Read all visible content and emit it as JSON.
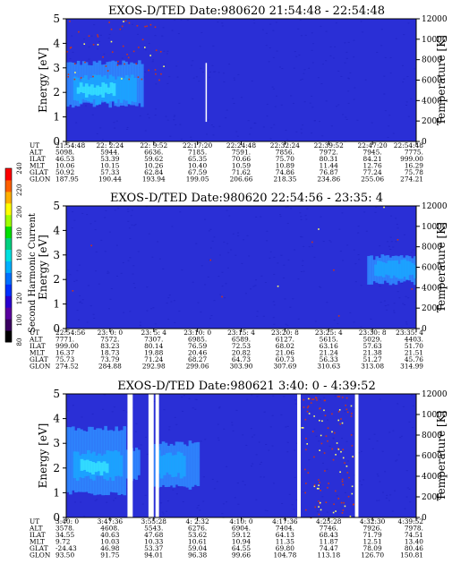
{
  "colorbar": {
    "label": "Second Harmonic Current",
    "ticks": [
      "80",
      "100",
      "120",
      "140",
      "160",
      "180",
      "200",
      "220",
      "240"
    ]
  },
  "colors": {
    "background": "#2a2fd6",
    "speckle_blue": "#1f23c4",
    "burst_light": "#2f8bff",
    "burst_core": "#1aa6ff",
    "burst_cyan": "#35e0ff",
    "speck_red": "#c8351f",
    "speck_yellow": "#ffff66",
    "white_line": "#ffffff"
  },
  "chart_data": [
    {
      "type": "heatmap",
      "title": "EXOS-D/TED   Date:980620  21:54:48 - 22:54:48",
      "ylabel": "Energy [eV]",
      "ylabel_right": "Temperature [K]",
      "ylim": [
        0,
        5
      ],
      "yticks": [
        "0",
        "1",
        "2",
        "3",
        "4",
        "5"
      ],
      "ylim_right": [
        0,
        12000
      ],
      "yticks_right": [
        "0",
        "2000",
        "4000",
        "6000",
        "8000",
        "10000",
        "12000"
      ],
      "row_labels": [
        "UT",
        "ALT",
        "ILAT",
        "MLT",
        "GLAT",
        "GLON"
      ],
      "columns": [
        [
          "21:54:48",
          "5098.",
          "46.53",
          "10.06",
          "50.92",
          "187.95"
        ],
        [
          "22: 2:24",
          "5944.",
          "53.39",
          "10.15",
          "57.33",
          "190.44"
        ],
        [
          "22: 9:52",
          "6636.",
          "59.62",
          "10.26",
          "62.84",
          "193.94"
        ],
        [
          "22:17:20",
          "7185.",
          "65.35",
          "10.40",
          "67.59",
          "199.05"
        ],
        [
          "22:24:48",
          "7591.",
          "70.66",
          "10.59",
          "71.62",
          "206.66"
        ],
        [
          "22:32:24",
          "7856.",
          "75.70",
          "10.89",
          "74.86",
          "218.35"
        ],
        [
          "22:39:52",
          "7972.",
          "80.31",
          "11.44",
          "76.87",
          "234.86"
        ],
        [
          "22:47:20",
          "7945.",
          "84.21",
          "12.76",
          "77.24",
          "255.06"
        ],
        [
          "22:54:48",
          "7775.",
          "999.00",
          "16.29",
          "75.78",
          "274.21"
        ]
      ],
      "regions": [
        {
          "x0": 0.0,
          "x1": 0.22,
          "y0": 1.5,
          "y1": 3.2,
          "level": "burst_light"
        },
        {
          "x0": 0.02,
          "x1": 0.2,
          "y0": 1.6,
          "y1": 2.6,
          "level": "burst_core"
        },
        {
          "x0": 0.03,
          "x1": 0.14,
          "y0": 1.9,
          "y1": 2.3,
          "level": "burst_cyan"
        }
      ],
      "vlines": [
        0.4
      ],
      "speckle_region": {
        "x0": 0.0,
        "x1": 0.3,
        "y0": 2.5,
        "y1": 5.0,
        "count": 60
      }
    },
    {
      "type": "heatmap",
      "title": "EXOS-D/TED   Date:980620  22:54:56 - 23:35: 4",
      "ylabel": "Energy [eV]",
      "ylabel_right": "Temperature [K]",
      "ylim": [
        0,
        5
      ],
      "yticks": [
        "0",
        "1",
        "2",
        "3",
        "4",
        "5"
      ],
      "ylim_right": [
        0,
        12000
      ],
      "yticks_right": [
        "0",
        "2000",
        "4000",
        "6000",
        "8000",
        "10000",
        "12000"
      ],
      "row_labels": [
        "UT",
        "ALT",
        "ILAT",
        "MLT",
        "GLAT",
        "GLON"
      ],
      "columns": [
        [
          "22:54:56",
          "7771.",
          "999.00",
          "16.37",
          "75.73",
          "274.52"
        ],
        [
          "23: 0: 0",
          "7572.",
          "83.23",
          "18.73",
          "73.79",
          "284.88"
        ],
        [
          "23: 5: 4",
          "7307.",
          "80.14",
          "19.88",
          "71.24",
          "292.98"
        ],
        [
          "23:10: 0",
          "6985.",
          "76.59",
          "20.46",
          "68.27",
          "299.06"
        ],
        [
          "23:15: 4",
          "6589.",
          "72.53",
          "20.82",
          "64.73",
          "303.90"
        ],
        [
          "23:20: 8",
          "6127.",
          "68.02",
          "21.06",
          "60.73",
          "307.69"
        ],
        [
          "23:25: 4",
          "5615.",
          "63.16",
          "21.24",
          "56.33",
          "310.63"
        ],
        [
          "23:30: 8",
          "5029.",
          "57.63",
          "21.38",
          "51.27",
          "313.08"
        ],
        [
          "23:35: 4",
          "4403.",
          "51.70",
          "21.51",
          "45.76",
          "314.99"
        ]
      ],
      "regions": [
        {
          "x0": 0.86,
          "x1": 1.0,
          "y0": 1.9,
          "y1": 2.9,
          "level": "burst_light"
        },
        {
          "x0": 0.88,
          "x1": 1.0,
          "y0": 2.1,
          "y1": 2.7,
          "level": "burst_core"
        }
      ],
      "vlines": [],
      "speckle_region": {
        "x0": 0.0,
        "x1": 1.0,
        "y0": 0.0,
        "y1": 5.0,
        "count": 12
      }
    },
    {
      "type": "heatmap",
      "title": "EXOS-D/TED   Date:980621  3:40: 0 - 4:39:52",
      "ylabel": "Energy [eV]",
      "ylabel_right": "Temperature [K]",
      "ylim": [
        0,
        5
      ],
      "yticks": [
        "0",
        "1",
        "2",
        "3",
        "4",
        "5"
      ],
      "ylim_right": [
        0,
        12000
      ],
      "yticks_right": [
        "0",
        "2000",
        "4000",
        "6000",
        "8000",
        "10000",
        "12000"
      ],
      "row_labels": [
        "UT",
        "ALT",
        "ILAT",
        "MLT",
        "GLAT",
        "GLON"
      ],
      "columns": [
        [
          "3:40: 0",
          "3578.",
          "34.55",
          "9.72",
          "-24.43",
          "93.50"
        ],
        [
          "3:47:36",
          "4608.",
          "40.63",
          "10.03",
          "46.98",
          "91.75"
        ],
        [
          "3:55:28",
          "5543.",
          "47.68",
          "10.33",
          "53.37",
          "94.01"
        ],
        [
          "4: 2:32",
          "6276.",
          "53.62",
          "10.61",
          "59.04",
          "96.38"
        ],
        [
          "4:10: 0",
          "6904.",
          "59.12",
          "10.94",
          "64.55",
          "99.66"
        ],
        [
          "4:17:36",
          "7404.",
          "64.13",
          "11.35",
          "69.80",
          "104.78"
        ],
        [
          "4:25:28",
          "7746.",
          "68.43",
          "11.87",
          "74.47",
          "113.18"
        ],
        [
          "4:32:30",
          "7926.",
          "71.79",
          "12.51",
          "78.09",
          "126.70"
        ],
        [
          "4:39:52",
          "7978.",
          "74.51",
          "13.40",
          "80.46",
          "150.81"
        ]
      ],
      "regions": [
        {
          "x0": 0.0,
          "x1": 0.17,
          "y0": 1.0,
          "y1": 3.6,
          "level": "burst_light"
        },
        {
          "x0": 0.02,
          "x1": 0.16,
          "y0": 1.6,
          "y1": 2.6,
          "level": "burst_core"
        },
        {
          "x0": 0.04,
          "x1": 0.12,
          "y0": 1.8,
          "y1": 2.3,
          "level": "burst_cyan"
        },
        {
          "x0": 0.17,
          "x1": 0.21,
          "y0": 1.6,
          "y1": 2.8,
          "level": "burst_light"
        },
        {
          "x0": 0.25,
          "x1": 0.38,
          "y0": 1.2,
          "y1": 3.0,
          "level": "burst_light"
        },
        {
          "x0": 0.26,
          "x1": 0.34,
          "y0": 1.7,
          "y1": 2.6,
          "level": "burst_core"
        }
      ],
      "gaps": [
        {
          "x0": 0.175,
          "x1": 0.19
        },
        {
          "x0": 0.235,
          "x1": 0.25
        },
        {
          "x0": 0.255,
          "x1": 0.265
        },
        {
          "x0": 0.66,
          "x1": 0.67
        },
        {
          "x0": 0.825,
          "x1": 0.835
        }
      ],
      "vlines": [],
      "speckle_region": {
        "x0": 0.67,
        "x1": 0.82,
        "y0": 0.0,
        "y1": 5.0,
        "count": 120
      }
    }
  ]
}
